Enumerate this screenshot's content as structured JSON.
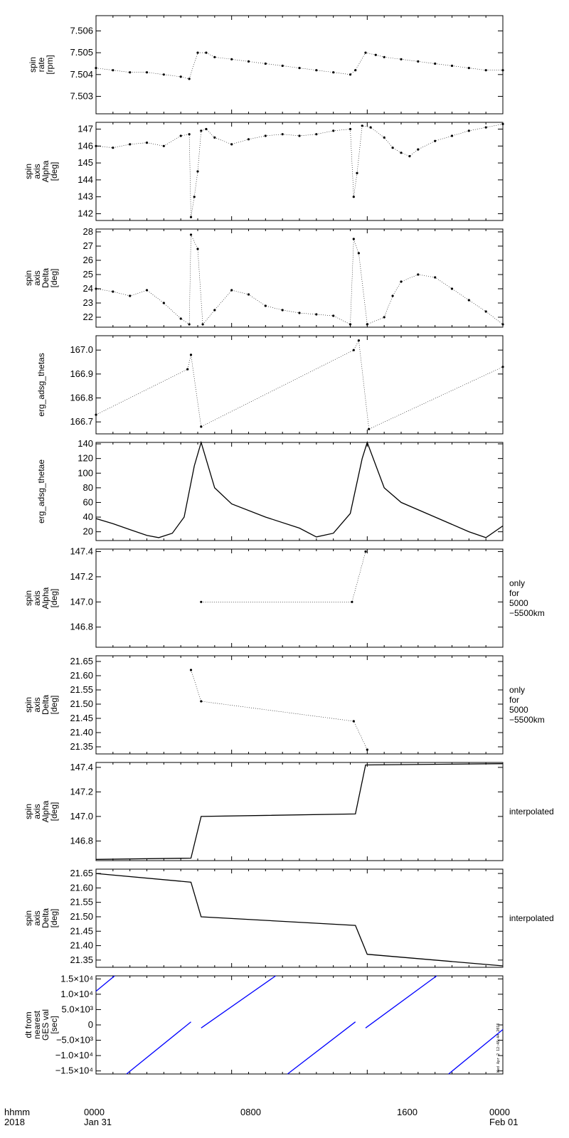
{
  "chart_data": [
    {
      "type": "scatter",
      "ylabel": [
        "spin",
        "rate",
        "[rpm]"
      ],
      "yticks": [
        "7.503",
        "7.504",
        "7.505",
        "7.506"
      ],
      "ylim": [
        7.5022,
        7.5067
      ],
      "series": [
        {
          "values": [
            [
              0,
              7.5043
            ],
            [
              1,
              7.5042
            ],
            [
              2,
              7.5041
            ],
            [
              3,
              7.5041
            ],
            [
              4,
              7.504
            ],
            [
              5,
              7.5039
            ],
            [
              5.5,
              7.5038
            ],
            [
              6.0,
              7.505
            ],
            [
              6.5,
              7.505
            ],
            [
              7,
              7.5048
            ],
            [
              8,
              7.5047
            ],
            [
              9,
              7.5046
            ],
            [
              10,
              7.5045
            ],
            [
              11,
              7.5044
            ],
            [
              12,
              7.5043
            ],
            [
              13,
              7.5042
            ],
            [
              14,
              7.5041
            ],
            [
              15,
              7.504
            ],
            [
              15.3,
              7.5042
            ],
            [
              15.9,
              7.505
            ],
            [
              16.5,
              7.5049
            ],
            [
              17,
              7.5048
            ],
            [
              18,
              7.5047
            ],
            [
              19,
              7.5046
            ],
            [
              20,
              7.5045
            ],
            [
              21,
              7.5044
            ],
            [
              22,
              7.5043
            ],
            [
              23,
              7.5042
            ],
            [
              24,
              7.5042
            ]
          ]
        }
      ]
    },
    {
      "type": "scatter",
      "ylabel": [
        "spin",
        "axis",
        "Alpha",
        "[deg]"
      ],
      "yticks": [
        "142",
        "143",
        "144",
        "145",
        "146",
        "147"
      ],
      "ylim": [
        141.6,
        147.4
      ],
      "series": [
        {
          "values": [
            [
              0,
              146.0
            ],
            [
              1,
              145.9
            ],
            [
              2,
              146.1
            ],
            [
              3,
              146.2
            ],
            [
              4,
              146.0
            ],
            [
              5,
              146.6
            ],
            [
              5.5,
              146.7
            ],
            [
              5.6,
              141.8
            ],
            [
              5.8,
              143.0
            ],
            [
              6.0,
              144.5
            ],
            [
              6.2,
              146.9
            ],
            [
              6.5,
              147.0
            ],
            [
              7,
              146.5
            ],
            [
              8,
              146.1
            ],
            [
              9,
              146.4
            ],
            [
              10,
              146.6
            ],
            [
              11,
              146.7
            ],
            [
              12,
              146.6
            ],
            [
              13,
              146.7
            ],
            [
              14,
              146.9
            ],
            [
              15,
              147.0
            ],
            [
              15.2,
              143.0
            ],
            [
              15.4,
              144.4
            ],
            [
              15.7,
              147.2
            ],
            [
              16.2,
              147.1
            ],
            [
              17,
              146.5
            ],
            [
              17.5,
              145.9
            ],
            [
              18,
              145.6
            ],
            [
              18.5,
              145.4
            ],
            [
              19,
              145.8
            ],
            [
              20,
              146.3
            ],
            [
              21,
              146.6
            ],
            [
              22,
              146.9
            ],
            [
              23,
              147.1
            ],
            [
              24,
              147.3
            ]
          ]
        }
      ]
    },
    {
      "type": "scatter",
      "ylabel": [
        "spin",
        "axis",
        "Delta",
        "[deg]"
      ],
      "yticks": [
        "22",
        "23",
        "24",
        "25",
        "26",
        "27",
        "28"
      ],
      "ylim": [
        21.3,
        28.2
      ],
      "series": [
        {
          "values": [
            [
              0,
              24.0
            ],
            [
              1,
              23.8
            ],
            [
              2,
              23.5
            ],
            [
              3,
              23.9
            ],
            [
              4,
              23.0
            ],
            [
              5,
              21.9
            ],
            [
              5.5,
              21.5
            ],
            [
              5.6,
              27.8
            ],
            [
              6.0,
              26.8
            ],
            [
              6.3,
              21.5
            ],
            [
              7,
              22.5
            ],
            [
              8,
              23.9
            ],
            [
              9,
              23.6
            ],
            [
              10,
              22.8
            ],
            [
              11,
              22.5
            ],
            [
              12,
              22.3
            ],
            [
              13,
              22.2
            ],
            [
              14,
              22.1
            ],
            [
              15,
              21.5
            ],
            [
              15.2,
              27.5
            ],
            [
              15.5,
              26.5
            ],
            [
              16,
              21.5
            ],
            [
              17,
              22.0
            ],
            [
              17.5,
              23.5
            ],
            [
              18,
              24.5
            ],
            [
              19,
              25.0
            ],
            [
              20,
              24.8
            ],
            [
              21,
              24.0
            ],
            [
              22,
              23.2
            ],
            [
              23,
              22.4
            ],
            [
              24,
              21.5
            ]
          ]
        }
      ]
    },
    {
      "type": "scatter",
      "ylabel": [
        "erg_adsg_thetas"
      ],
      "yticks": [
        "166.7",
        "166.8",
        "166.9",
        "167.0"
      ],
      "ylim": [
        166.65,
        167.06
      ],
      "series": [
        {
          "values": [
            [
              0,
              166.73
            ],
            [
              5.4,
              166.92
            ],
            [
              5.6,
              166.98
            ],
            [
              6.2,
              166.68
            ],
            [
              15.2,
              167.0
            ],
            [
              15.5,
              167.04
            ],
            [
              16.1,
              166.67
            ],
            [
              24,
              166.93
            ]
          ]
        }
      ]
    },
    {
      "type": "line",
      "ylabel": [
        "erg_adsg_thetae"
      ],
      "yticks": [
        "20",
        "40",
        "60",
        "80",
        "100",
        "120",
        "140"
      ],
      "ylim": [
        8,
        142
      ],
      "series": [
        {
          "values": [
            [
              0,
              38
            ],
            [
              1,
              31
            ],
            [
              2,
              23
            ],
            [
              3,
              15
            ],
            [
              3.7,
              12
            ],
            [
              4.5,
              18
            ],
            [
              5.2,
              40
            ],
            [
              5.8,
              110
            ],
            [
              6.2,
              142
            ],
            [
              7,
              80
            ],
            [
              8,
              58
            ],
            [
              10,
              40
            ],
            [
              12,
              25
            ],
            [
              13,
              13
            ],
            [
              14,
              18
            ],
            [
              15,
              45
            ],
            [
              15.7,
              120
            ],
            [
              16,
              142
            ],
            [
              17,
              80
            ],
            [
              18,
              60
            ],
            [
              20,
              40
            ],
            [
              22,
              20
            ],
            [
              23,
              12
            ],
            [
              24,
              28
            ]
          ]
        }
      ]
    },
    {
      "type": "scatter",
      "ylabel": [
        "spin",
        "axis",
        "Alpha",
        "[deg]"
      ],
      "yticks": [
        "146.8",
        "147.0",
        "147.2",
        "147.4"
      ],
      "ylim": [
        146.64,
        147.42
      ],
      "note": [
        "only",
        "for",
        "5000",
        "−5500km"
      ],
      "series": [
        {
          "values": [
            [
              6.2,
              147.0
            ],
            [
              15.1,
              147.0
            ],
            [
              15.9,
              147.4
            ]
          ]
        }
      ]
    },
    {
      "type": "scatter",
      "ylabel": [
        "spin",
        "axis",
        "Delta",
        "[deg]"
      ],
      "yticks": [
        "21.35",
        "21.40",
        "21.45",
        "21.50",
        "21.55",
        "21.60",
        "21.65"
      ],
      "ylim": [
        21.325,
        21.67
      ],
      "note": [
        "only",
        "for",
        "5000",
        "−5500km"
      ],
      "series": [
        {
          "values": [
            [
              5.6,
              21.62
            ],
            [
              6.2,
              21.51
            ],
            [
              15.2,
              21.44
            ],
            [
              16.0,
              21.34
            ]
          ]
        }
      ]
    },
    {
      "type": "line",
      "ylabel": [
        "spin",
        "axis",
        "Alpha",
        "[deg]"
      ],
      "yticks": [
        "146.8",
        "147.0",
        "147.2",
        "147.4"
      ],
      "ylim": [
        146.64,
        147.44
      ],
      "note": [
        "interpolated"
      ],
      "series": [
        {
          "values": [
            [
              0,
              146.65
            ],
            [
              5.6,
              146.66
            ],
            [
              6.2,
              147.0
            ],
            [
              15.3,
              147.02
            ],
            [
              15.9,
              147.42
            ],
            [
              24,
              147.43
            ]
          ]
        }
      ]
    },
    {
      "type": "line",
      "ylabel": [
        "spin",
        "axis",
        "Delta",
        "[deg]"
      ],
      "yticks": [
        "21.35",
        "21.40",
        "21.45",
        "21.50",
        "21.55",
        "21.60",
        "21.65"
      ],
      "ylim": [
        21.325,
        21.665
      ],
      "note": [
        "interpolated"
      ],
      "series": [
        {
          "values": [
            [
              0,
              21.65
            ],
            [
              5.6,
              21.62
            ],
            [
              6.2,
              21.5
            ],
            [
              15.3,
              21.47
            ],
            [
              16.0,
              21.37
            ],
            [
              24,
              21.33
            ]
          ]
        }
      ]
    },
    {
      "type": "line",
      "color": "#0000ff",
      "ylabel": [
        "dt from",
        "nearest",
        "GES val",
        "[sec]"
      ],
      "yticks": [
        "−1.5×10⁴",
        "−1.0×10⁴",
        "−5.0×10³",
        "0",
        "5.0×10³",
        "1.0×10⁴",
        "1.5×10⁴"
      ],
      "ylim": [
        -16000,
        16000
      ],
      "series": [
        {
          "values": [
            [
              0,
              11000
            ],
            [
              1.1,
              16000
            ]
          ]
        },
        {
          "values": [
            [
              1.8,
              -16000
            ],
            [
              5.6,
              1000
            ]
          ]
        },
        {
          "values": [
            [
              6.2,
              -1000
            ],
            [
              10.6,
              16000
            ]
          ]
        },
        {
          "values": [
            [
              11.3,
              -16000
            ],
            [
              15.3,
              1000
            ]
          ]
        },
        {
          "values": [
            [
              15.9,
              -1000
            ],
            [
              20.1,
              16000
            ]
          ]
        },
        {
          "values": [
            [
              20.8,
              -16000
            ],
            [
              24,
              -1500
            ]
          ]
        }
      ]
    }
  ],
  "time_axis": {
    "label_line1": "hhmm",
    "label_line2": "2018",
    "ticks": [
      {
        "hours": 0,
        "time": "0000",
        "date": "Jan 31"
      },
      {
        "hours": 8,
        "time": "0800",
        "date": ""
      },
      {
        "hours": 16,
        "time": "1600",
        "date": ""
      },
      {
        "hours": 24,
        "time": "0000",
        "date": "Feb 01"
      }
    ],
    "xlim_hours": [
      0,
      24
    ]
  },
  "stamp": "Wed Apr  2 12:48:44  2018"
}
